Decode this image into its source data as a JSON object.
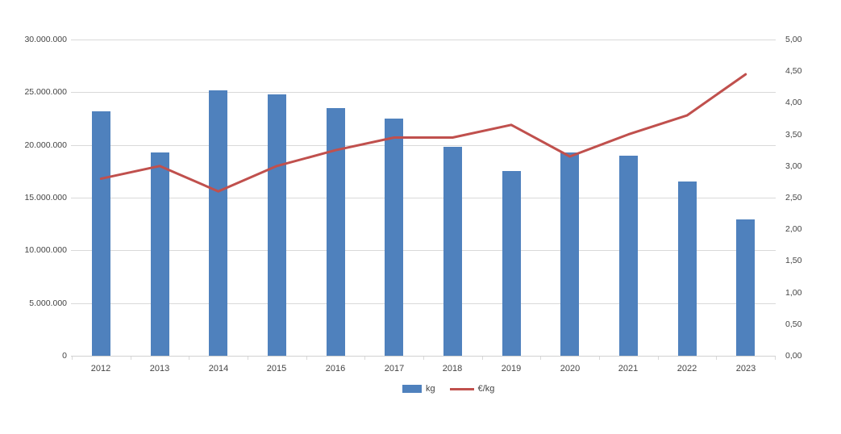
{
  "chart_data": {
    "type": "combo-bar-line",
    "title": "",
    "categories": [
      "2012",
      "2013",
      "2014",
      "2015",
      "2016",
      "2017",
      "2018",
      "2019",
      "2020",
      "2021",
      "2022",
      "2023"
    ],
    "series": [
      {
        "name": "kg",
        "type": "bar",
        "axis": "left",
        "color": "#4F81BD",
        "values": [
          23200000,
          19300000,
          25200000,
          24800000,
          23500000,
          22500000,
          19800000,
          17500000,
          19300000,
          19000000,
          16500000,
          12900000
        ]
      },
      {
        "name": "€/kg",
        "type": "line",
        "axis": "right",
        "color": "#C0504D",
        "values": [
          2.8,
          3.0,
          2.6,
          3.0,
          3.25,
          3.45,
          3.45,
          3.65,
          3.15,
          3.5,
          3.8,
          4.45
        ]
      }
    ],
    "left_axis": {
      "min": 0,
      "max": 30000000,
      "step": 5000000,
      "tick_labels": [
        "0",
        "5.000.000",
        "10.000.000",
        "15.000.000",
        "20.000.000",
        "25.000.000",
        "30.000.000"
      ]
    },
    "right_axis": {
      "min": 0,
      "max": 5,
      "step": 0.5,
      "tick_labels": [
        "0,00",
        "0,50",
        "1,00",
        "1,50",
        "2,00",
        "2,50",
        "3,00",
        "3,50",
        "4,00",
        "4,50",
        "5,00"
      ]
    },
    "legend": {
      "position": "bottom",
      "items": [
        {
          "label": "kg",
          "swatch": "bar",
          "color": "#4F81BD"
        },
        {
          "label": "€/kg",
          "swatch": "line",
          "color": "#C0504D"
        }
      ]
    },
    "grid": true,
    "colors": {
      "gridline": "#D9D9D9",
      "axis_text": "#444444",
      "background": "#FFFFFF"
    }
  }
}
